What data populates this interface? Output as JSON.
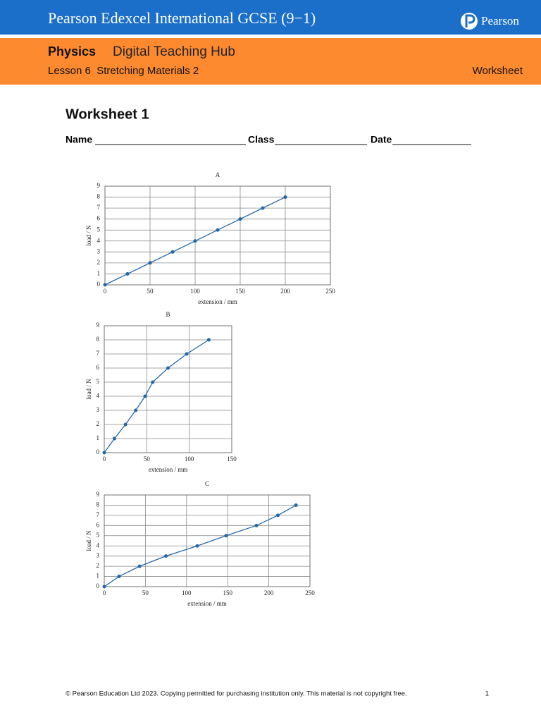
{
  "header": {
    "title": "Pearson Edexcel International GCSE (9−1)",
    "logo": "Pearson",
    "subject": "Physics",
    "hub": "Digital Teaching Hub",
    "lesson": "Lesson 6  Stretching Materials 2",
    "doc_type": "Worksheet"
  },
  "worksheet": {
    "title": "Worksheet 1",
    "fields": [
      "Name",
      "Class",
      "Date"
    ]
  },
  "chart_data": [
    {
      "type": "line",
      "title": "A",
      "x_label": "extension / mm",
      "y_label": "load / N",
      "x": [
        0,
        25,
        50,
        75,
        100,
        125,
        150,
        175,
        200
      ],
      "values": [
        0,
        1,
        2,
        3,
        4,
        5,
        6,
        7,
        8
      ],
      "color": "#2268a8",
      "xlim": [
        0,
        250
      ],
      "ylim": [
        0,
        9
      ],
      "xticks": [
        0,
        50,
        100,
        150,
        200,
        250
      ],
      "yticks": [
        0,
        1,
        2,
        3,
        4,
        5,
        6,
        7,
        8,
        9
      ],
      "grid": true
    },
    {
      "type": "line",
      "title": "B",
      "x_label": "extension / mm",
      "y_label": "load / N",
      "x": [
        0,
        12,
        25,
        37,
        48,
        57,
        75,
        97,
        123
      ],
      "values": [
        0,
        1,
        2,
        3,
        4,
        5,
        6,
        7,
        8
      ],
      "color": "#2268a8",
      "xlim": [
        0,
        150
      ],
      "ylim": [
        0,
        9
      ],
      "xticks": [
        0,
        50,
        100,
        150
      ],
      "yticks": [
        0,
        1,
        2,
        3,
        4,
        5,
        6,
        7,
        8,
        9
      ],
      "grid": true
    },
    {
      "type": "line",
      "title": "C",
      "x_label": "extension / mm",
      "y_label": "load / N",
      "x": [
        0,
        18,
        43,
        75,
        113,
        148,
        185,
        211,
        233
      ],
      "values": [
        0,
        1,
        2,
        3,
        4,
        5,
        6,
        7,
        8
      ],
      "color": "#2268a8",
      "xlim": [
        0,
        250
      ],
      "ylim": [
        0,
        9
      ],
      "xticks": [
        0,
        50,
        100,
        150,
        200,
        250
      ],
      "yticks": [
        0,
        1,
        2,
        3,
        4,
        5,
        6,
        7,
        8,
        9
      ],
      "grid": true
    }
  ],
  "footer": {
    "copyright": "© Pearson Education Ltd 2023. Copying permitted for purchasing institution only. This material is not copyright free.",
    "page": "1"
  }
}
